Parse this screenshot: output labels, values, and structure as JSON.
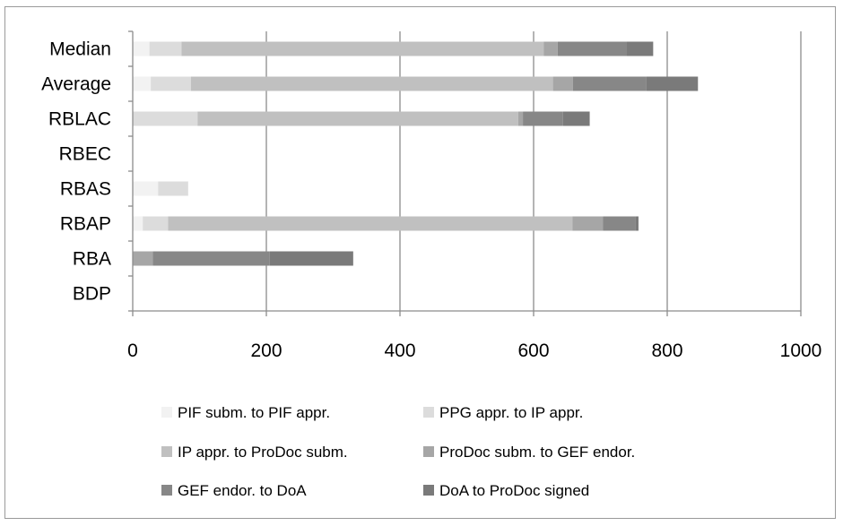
{
  "chart_data": {
    "type": "bar",
    "orientation": "horizontal",
    "stacked": true,
    "categories": [
      "BDP",
      "RBA",
      "RBAP",
      "RBAS",
      "RBEC",
      "RBLAC",
      "Average",
      "Median"
    ],
    "series": [
      {
        "name": "PIF subm. to PIF appr.",
        "color": "#f2f2f2",
        "values": [
          0,
          0,
          15,
          38,
          0,
          0,
          27,
          25
        ]
      },
      {
        "name": "PPG appr. to IP appr.",
        "color": "#dcdcdc",
        "values": [
          0,
          0,
          38,
          45,
          0,
          97,
          60,
          48
        ]
      },
      {
        "name": "IP appr. to ProDoc subm.",
        "color": "#c0c0c0",
        "values": [
          0,
          0,
          605,
          0,
          0,
          480,
          542,
          542
        ]
      },
      {
        "name": "ProDoc subm. to GEF endor.",
        "color": "#a6a6a6",
        "values": [
          0,
          30,
          46,
          0,
          0,
          7,
          30,
          21
        ]
      },
      {
        "name": "GEF endor. to DoA",
        "color": "#878787",
        "values": [
          0,
          175,
          48,
          0,
          0,
          60,
          110,
          103
        ]
      },
      {
        "name": "DoA to ProDoc signed",
        "color": "#7a7a7a",
        "values": [
          0,
          125,
          5,
          0,
          0,
          40,
          77,
          40
        ]
      }
    ],
    "xlim": [
      0,
      1000
    ],
    "xticks": [
      "0",
      "200",
      "400",
      "600",
      "800",
      "1000"
    ],
    "xtick_values": [
      0,
      200,
      400,
      600,
      800,
      1000
    ],
    "grid": "vertical major gridlines",
    "legend": "bottom"
  }
}
